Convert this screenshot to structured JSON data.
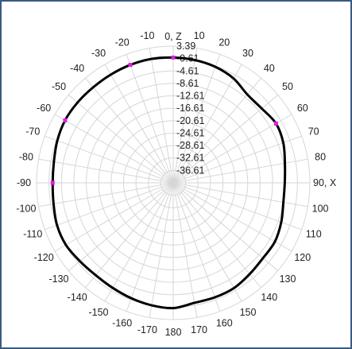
{
  "chart_data": {
    "type": "polar-line",
    "title": "",
    "angle_labels": [
      {
        "deg": 0,
        "text": "0, Z"
      },
      {
        "deg": 10,
        "text": "10"
      },
      {
        "deg": 20,
        "text": "20"
      },
      {
        "deg": 30,
        "text": "30"
      },
      {
        "deg": 40,
        "text": "40"
      },
      {
        "deg": 50,
        "text": "50"
      },
      {
        "deg": 60,
        "text": "60"
      },
      {
        "deg": 70,
        "text": "70"
      },
      {
        "deg": 80,
        "text": "80"
      },
      {
        "deg": 90,
        "text": "90, X"
      },
      {
        "deg": 100,
        "text": "100"
      },
      {
        "deg": 110,
        "text": "110"
      },
      {
        "deg": 120,
        "text": "120"
      },
      {
        "deg": 130,
        "text": "130"
      },
      {
        "deg": 140,
        "text": "140"
      },
      {
        "deg": 150,
        "text": "150"
      },
      {
        "deg": 160,
        "text": "160"
      },
      {
        "deg": 170,
        "text": "170"
      },
      {
        "deg": 180,
        "text": "180"
      },
      {
        "deg": -170,
        "text": "-170"
      },
      {
        "deg": -160,
        "text": "-160"
      },
      {
        "deg": -150,
        "text": "-150"
      },
      {
        "deg": -140,
        "text": "-140"
      },
      {
        "deg": -130,
        "text": "-130"
      },
      {
        "deg": -120,
        "text": "-120"
      },
      {
        "deg": -110,
        "text": "-110"
      },
      {
        "deg": -100,
        "text": "-100"
      },
      {
        "deg": -90,
        "text": "-90"
      },
      {
        "deg": -80,
        "text": "-80"
      },
      {
        "deg": -70,
        "text": "-70"
      },
      {
        "deg": -60,
        "text": "-60"
      },
      {
        "deg": -50,
        "text": "-50"
      },
      {
        "deg": -40,
        "text": "-40"
      },
      {
        "deg": -30,
        "text": "-30"
      },
      {
        "deg": -20,
        "text": "-20"
      },
      {
        "deg": -10,
        "text": "-10"
      }
    ],
    "radial_ticks": [
      3.39,
      -0.61,
      -4.61,
      -8.61,
      -12.61,
      -16.61,
      -20.61,
      -24.61,
      -28.61,
      -32.61,
      -36.61
    ],
    "radial_tick_labels": [
      "3.39",
      "-0.61",
      "-4.61",
      "-8.61",
      "-12.61",
      "-16.61",
      "-20.61",
      "-24.61",
      "-28.61",
      "-32.61",
      "-36.61"
    ],
    "radial_range": [
      -40.61,
      3.39
    ],
    "grid": true,
    "series": [
      {
        "color": "#000000",
        "points": [
          {
            "angle": -180,
            "value": -0.3
          },
          {
            "angle": -170,
            "value": -0.6
          },
          {
            "angle": -160,
            "value": -1.1
          },
          {
            "angle": -150,
            "value": -1.6
          },
          {
            "angle": -140,
            "value": -1.8
          },
          {
            "angle": -130,
            "value": -1.4
          },
          {
            "angle": -120,
            "value": -0.7
          },
          {
            "angle": -110,
            "value": -0.8
          },
          {
            "angle": -100,
            "value": -1.5
          },
          {
            "angle": -90,
            "value": -1.8
          },
          {
            "angle": -80,
            "value": -1.6
          },
          {
            "angle": -70,
            "value": -0.9
          },
          {
            "angle": -60,
            "value": -0.4
          },
          {
            "angle": -50,
            "value": -0.4
          },
          {
            "angle": -40,
            "value": -0.5
          },
          {
            "angle": -30,
            "value": -0.4
          },
          {
            "angle": -20,
            "value": -0.2
          },
          {
            "angle": -10,
            "value": -0.1
          },
          {
            "angle": 0,
            "value": -0.3
          },
          {
            "angle": 10,
            "value": -0.5
          },
          {
            "angle": 20,
            "value": -0.9
          },
          {
            "angle": 30,
            "value": -1.8
          },
          {
            "angle": 40,
            "value": -3.5
          },
          {
            "angle": 50,
            "value": -3.4
          },
          {
            "angle": 60,
            "value": -2.4
          },
          {
            "angle": 70,
            "value": -2.9
          },
          {
            "angle": 80,
            "value": -4.1
          },
          {
            "angle": 90,
            "value": -4.7
          },
          {
            "angle": 100,
            "value": -4.6
          },
          {
            "angle": 110,
            "value": -3.6
          },
          {
            "angle": 120,
            "value": -2.8
          },
          {
            "angle": 130,
            "value": -2.9
          },
          {
            "angle": 140,
            "value": -2.3
          },
          {
            "angle": 150,
            "value": -1.5
          },
          {
            "angle": 160,
            "value": -1.4
          },
          {
            "angle": 170,
            "value": -1.4
          },
          {
            "angle": 180,
            "value": -0.3
          }
        ]
      }
    ],
    "markers": [
      {
        "angle": -90,
        "value": -1.8,
        "color": "#e020e0"
      },
      {
        "angle": -60,
        "value": -0.4,
        "color": "#e020e0"
      },
      {
        "angle": -20,
        "value": -0.2,
        "color": "#e020e0"
      },
      {
        "angle": 0,
        "value": -0.3,
        "color": "#e020e0"
      },
      {
        "angle": 60,
        "value": -2.4,
        "color": "#e020e0"
      }
    ],
    "colors": {
      "frame": "#3a5a86",
      "grid": "#d6d6d6",
      "trace": "#000000",
      "marker": "#e020e0"
    }
  }
}
